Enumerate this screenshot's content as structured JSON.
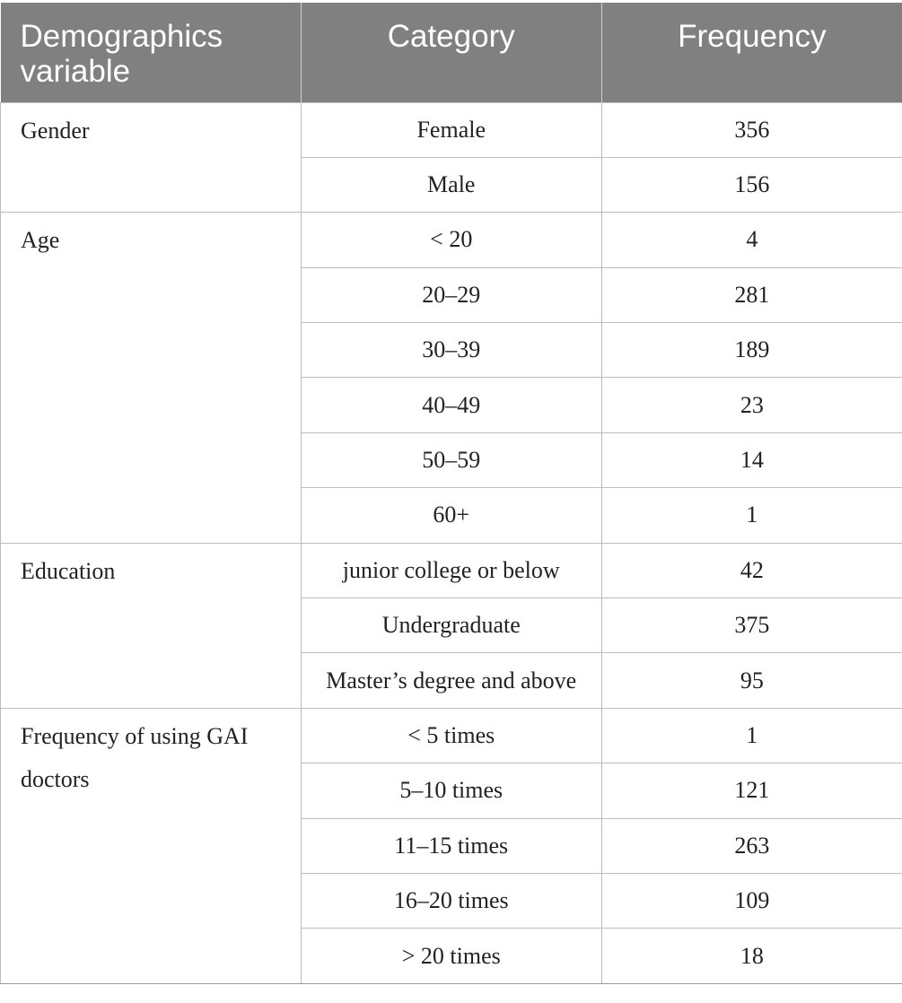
{
  "table": {
    "header": [
      "Demographics variable",
      "Category",
      "Frequency"
    ],
    "groups": [
      {
        "variable": "Gender",
        "rows": [
          {
            "category": "Female",
            "frequency": 356
          },
          {
            "category": "Male",
            "frequency": 156
          }
        ]
      },
      {
        "variable": "Age",
        "rows": [
          {
            "category": "< 20",
            "frequency": 4
          },
          {
            "category": "20–29",
            "frequency": 281
          },
          {
            "category": "30–39",
            "frequency": 189
          },
          {
            "category": "40–49",
            "frequency": 23
          },
          {
            "category": "50–59",
            "frequency": 14
          },
          {
            "category": "60+",
            "frequency": 1
          }
        ]
      },
      {
        "variable": "Education",
        "rows": [
          {
            "category": "junior college or below",
            "frequency": 42
          },
          {
            "category": "Undergraduate",
            "frequency": 375
          },
          {
            "category": "Master’s degree and above",
            "frequency": 95
          }
        ]
      },
      {
        "variable": "Frequency of using GAI doctors",
        "rows": [
          {
            "category": "< 5 times",
            "frequency": 1
          },
          {
            "category": "5–10 times",
            "frequency": 121
          },
          {
            "category": "11–15 times",
            "frequency": 263
          },
          {
            "category": "16–20 times",
            "frequency": 109
          },
          {
            "category": "> 20 times",
            "frequency": 18
          }
        ]
      }
    ]
  }
}
